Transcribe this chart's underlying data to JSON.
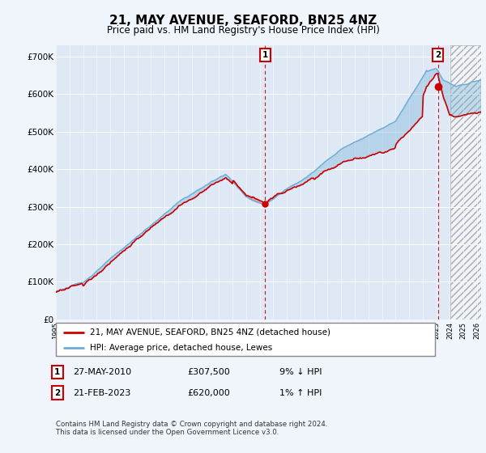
{
  "title": "21, MAY AVENUE, SEAFORD, BN25 4NZ",
  "subtitle": "Price paid vs. HM Land Registry's House Price Index (HPI)",
  "legend_line1": "21, MAY AVENUE, SEAFORD, BN25 4NZ (detached house)",
  "legend_line2": "HPI: Average price, detached house, Lewes",
  "event1_date": "27-MAY-2010",
  "event1_price": "£307,500",
  "event1_hpi": "9% ↓ HPI",
  "event2_date": "21-FEB-2023",
  "event2_price": "£620,000",
  "event2_hpi": "1% ↑ HPI",
  "footer": "Contains HM Land Registry data © Crown copyright and database right 2024.\nThis data is licensed under the Open Government Licence v3.0.",
  "hpi_color": "#6baed6",
  "price_color": "#cc0000",
  "event_color": "#cc0000",
  "bg_color": "#f0f4fb",
  "plot_bg": "#dfe8f5",
  "ylim": [
    0,
    730000
  ],
  "yticks": [
    0,
    100000,
    200000,
    300000,
    400000,
    500000,
    600000,
    700000
  ],
  "ytick_labels": [
    "£0",
    "£100K",
    "£200K",
    "£300K",
    "£400K",
    "£500K",
    "£600K",
    "£700K"
  ],
  "event1_year": 2010.4,
  "event2_year": 2023.12,
  "hatch_start": 2024.0,
  "xlim_start": 1995,
  "xlim_end": 2026.3
}
